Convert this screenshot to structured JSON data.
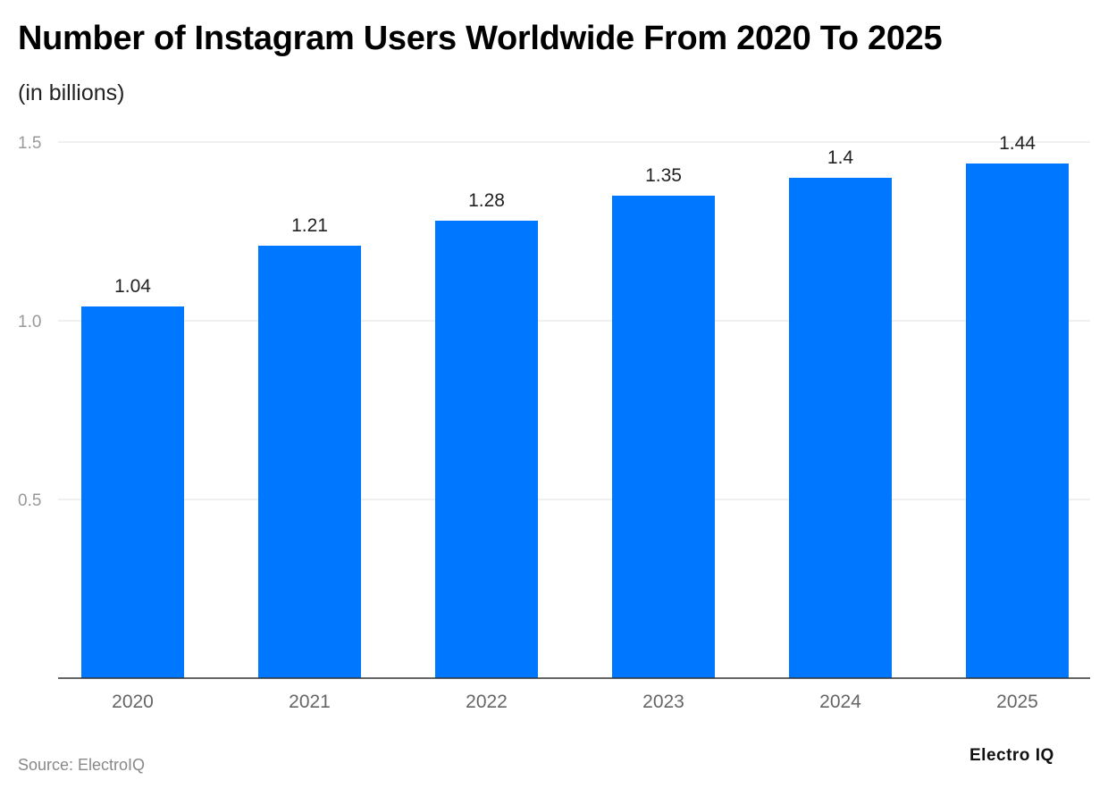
{
  "title": "Number of Instagram Users Worldwide From 2020 To 2025",
  "subtitle": "(in billions)",
  "source": "Source: ElectroIQ",
  "logo": "Electro IQ",
  "colors": {
    "bar": "#0077ff",
    "grid": "#e0e0e0",
    "axis": "#333333"
  },
  "chart_data": {
    "type": "bar",
    "categories": [
      "2020",
      "2021",
      "2022",
      "2023",
      "2024",
      "2025"
    ],
    "values": [
      1.04,
      1.21,
      1.28,
      1.35,
      1.4,
      1.44
    ],
    "data_labels": [
      "1.04",
      "1.21",
      "1.28",
      "1.35",
      "1.4",
      "1.44"
    ],
    "title": "Number of Instagram Users Worldwide From 2020 To 2025",
    "ylabel": "(in billions)",
    "xlabel": "",
    "ylim": [
      0,
      1.5
    ],
    "yticks": [
      "0.5",
      "1.0",
      "1.5"
    ],
    "grid": true
  }
}
